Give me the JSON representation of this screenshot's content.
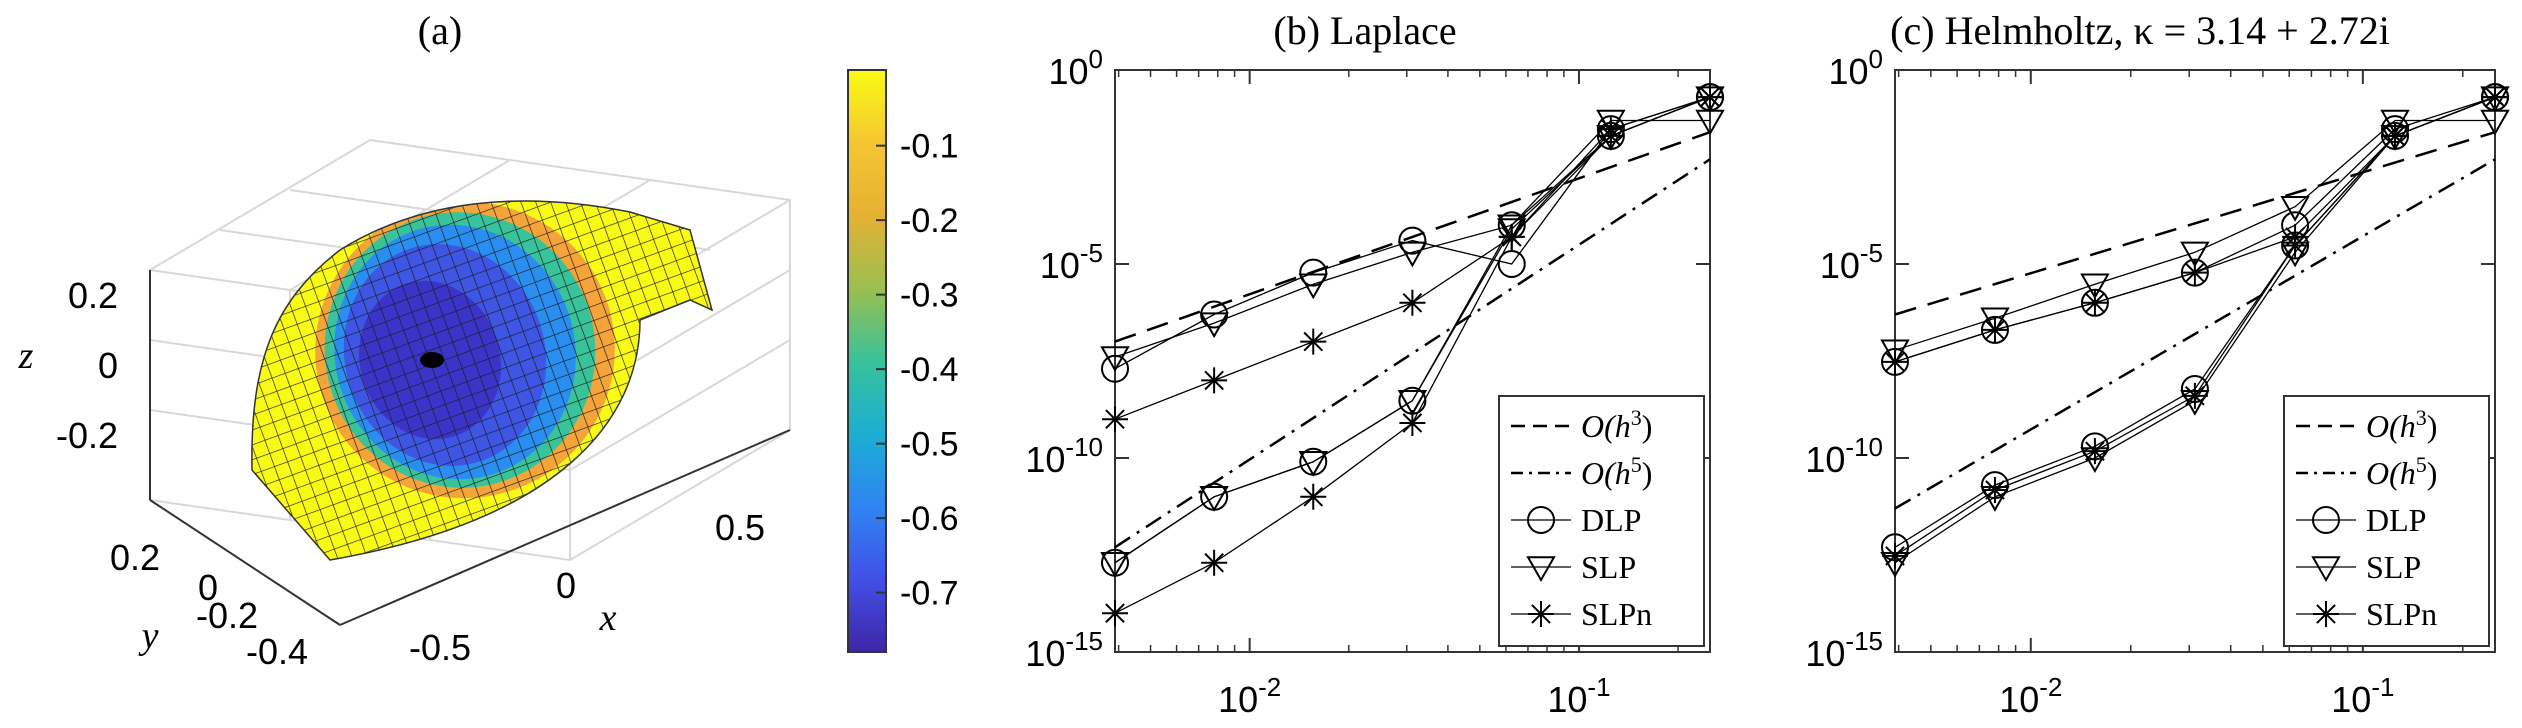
{
  "panel_a": {
    "title": "(a)",
    "axis_labels": {
      "x": "x",
      "y": "y",
      "z": "z"
    },
    "z_ticks": [
      "0.2",
      "0",
      "-0.2"
    ],
    "y_ticks": [
      "0.2",
      "0",
      "-0.2",
      "-0.4"
    ],
    "x_ticks": [
      "-0.5",
      "0",
      "0.5"
    ],
    "colorbar_ticks": [
      "-0.1",
      "-0.2",
      "-0.3",
      "-0.4",
      "-0.5",
      "-0.6",
      "-0.7"
    ],
    "colormap": [
      "#3e26a8",
      "#4150e6",
      "#2f85f2",
      "#1baed3",
      "#38c29a",
      "#9bbf4f",
      "#e6b133",
      "#f5c631",
      "#f9fb15"
    ]
  },
  "chart_data": [
    {
      "type": "line",
      "title": "(b) Laplace",
      "x_scale": "log",
      "y_scale": "log",
      "xlim": [
        0.0039,
        0.25
      ],
      "ylim": [
        1e-15,
        1
      ],
      "x_ticks": [
        "10^-2",
        "10^-1"
      ],
      "y_ticks": [
        "10^0",
        "10^-5",
        "10^-10",
        "10^-15"
      ],
      "legend_position": "bottom-right",
      "legend": [
        "O(h^3)",
        "O(h^5)",
        "DLP",
        "SLP",
        "SLPn"
      ],
      "x": [
        0.0039,
        0.0078,
        0.0156,
        0.0312,
        0.0625,
        0.125,
        0.25
      ],
      "series": [
        {
          "name": "O(h^3)",
          "style": "dashed",
          "x": [
            0.0039,
            0.25
          ],
          "y": [
            1e-07,
            0.025
          ]
        },
        {
          "name": "O(h^5)",
          "style": "dashdot",
          "x": [
            0.0039,
            0.25
          ],
          "y": [
            5e-13,
            0.005
          ]
        },
        {
          "name": "DLP",
          "marker": "circle",
          "y": [
            2e-08,
            5e-07,
            6e-06,
            4e-05,
            1e-05,
            0.03,
            0.2
          ]
        },
        {
          "name": "SLP",
          "marker": "triangle",
          "y": [
            4e-08,
            3e-07,
            3e-06,
            2e-05,
            0.0001,
            0.05,
            0.05
          ]
        },
        {
          "name": "SLPn",
          "marker": "star",
          "y": [
            1e-09,
            1e-08,
            1e-07,
            1e-06,
            5e-05,
            0.03,
            0.2
          ]
        },
        {
          "name": "DLP",
          "marker": "circle",
          "y": [
            2e-13,
            1e-11,
            8e-11,
            3e-09,
            0.0001,
            0.02,
            0.2
          ]
        },
        {
          "name": "SLP",
          "marker": "triangle",
          "y": [
            2e-13,
            1e-11,
            8e-11,
            3e-09,
            8e-05,
            0.02,
            0.2
          ]
        },
        {
          "name": "SLPn",
          "marker": "star",
          "y": [
            1e-14,
            2e-13,
            1e-11,
            8e-10,
            5e-05,
            0.02,
            0.2
          ]
        }
      ]
    },
    {
      "type": "line",
      "title": "(c) Helmholtz, κ = 3.14 + 2.72i",
      "x_scale": "log",
      "y_scale": "log",
      "xlim": [
        0.0039,
        0.25
      ],
      "ylim": [
        1e-15,
        1
      ],
      "x_ticks": [
        "10^-2",
        "10^-1"
      ],
      "y_ticks": [
        "10^0",
        "10^-5",
        "10^-10",
        "10^-15"
      ],
      "legend_position": "bottom-right",
      "legend": [
        "O(h^3)",
        "O(h^5)",
        "DLP",
        "SLP",
        "SLPn"
      ],
      "x": [
        0.0039,
        0.0078,
        0.0156,
        0.0312,
        0.0625,
        0.125,
        0.25
      ],
      "series": [
        {
          "name": "O(h^3)",
          "style": "dashed",
          "x": [
            0.0039,
            0.25
          ],
          "y": [
            5e-07,
            0.025
          ]
        },
        {
          "name": "O(h^5)",
          "style": "dashdot",
          "x": [
            0.0039,
            0.25
          ],
          "y": [
            5e-12,
            0.005
          ]
        },
        {
          "name": "DLP",
          "marker": "circle",
          "y": [
            3e-08,
            2e-07,
            1e-06,
            6e-06,
            0.0001,
            0.03,
            0.2
          ]
        },
        {
          "name": "SLP",
          "marker": "triangle",
          "y": [
            6e-08,
            4e-07,
            3e-06,
            2e-05,
            0.0003,
            0.05,
            0.05
          ]
        },
        {
          "name": "SLPn",
          "marker": "star",
          "y": [
            3e-08,
            2e-07,
            1e-06,
            6e-06,
            5e-05,
            0.02,
            0.2
          ]
        },
        {
          "name": "DLP",
          "marker": "circle",
          "y": [
            5e-13,
            2e-11,
            2e-10,
            6e-09,
            3e-05,
            0.02,
            0.2
          ]
        },
        {
          "name": "SLP",
          "marker": "triangle",
          "y": [
            2e-13,
            1e-11,
            1e-10,
            3e-09,
            2e-05,
            0.02,
            0.2
          ]
        },
        {
          "name": "SLPn",
          "marker": "star",
          "y": [
            3e-13,
            1.5e-11,
            1.5e-10,
            4e-09,
            3e-05,
            0.02,
            0.2
          ]
        }
      ]
    }
  ]
}
